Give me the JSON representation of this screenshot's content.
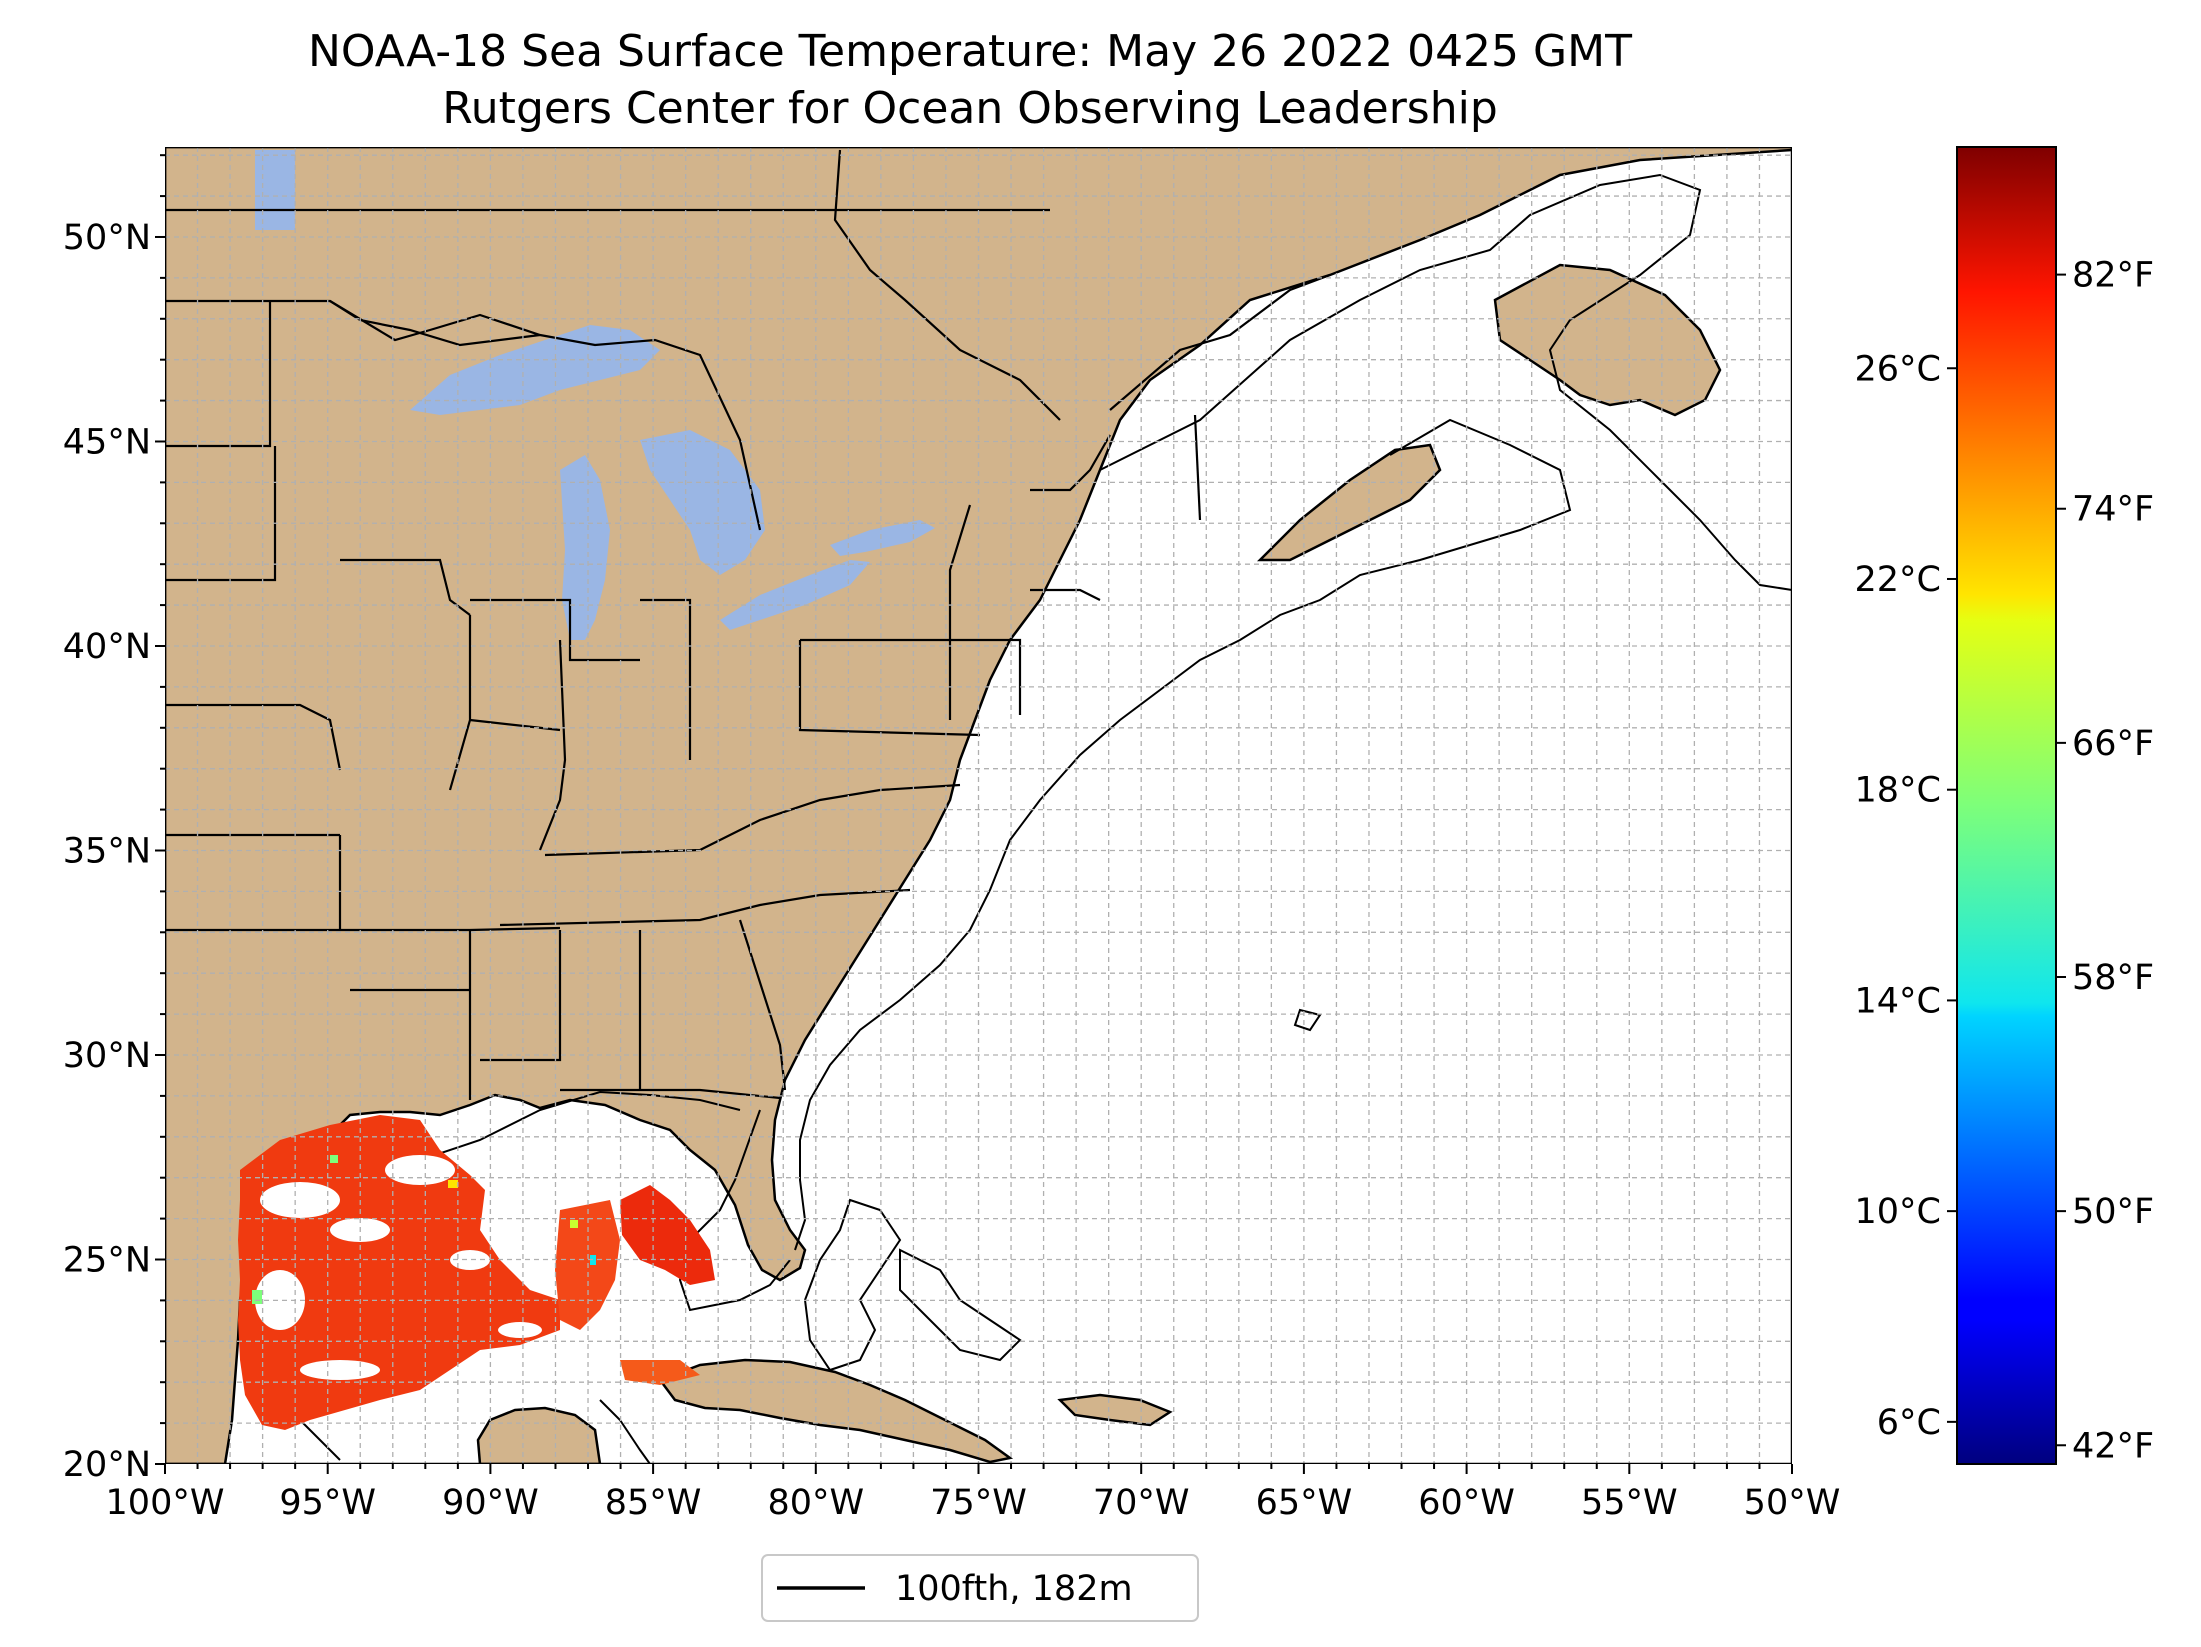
{
  "title": {
    "line1": "NOAA-18 Sea Surface Temperature: May 26 2022 0425 GMT",
    "line2": "Rutgers Center for Ocean Observing Leadership"
  },
  "map": {
    "lon_range": [
      -100,
      -50
    ],
    "lat_range": [
      20,
      52.2
    ],
    "lon_ticks": [
      {
        "value": -100,
        "label": "100°W"
      },
      {
        "value": -95,
        "label": "95°W"
      },
      {
        "value": -90,
        "label": "90°W"
      },
      {
        "value": -85,
        "label": "85°W"
      },
      {
        "value": -80,
        "label": "80°W"
      },
      {
        "value": -75,
        "label": "75°W"
      },
      {
        "value": -70,
        "label": "70°W"
      },
      {
        "value": -65,
        "label": "65°W"
      },
      {
        "value": -60,
        "label": "60°W"
      },
      {
        "value": -55,
        "label": "55°W"
      },
      {
        "value": -50,
        "label": "50°W"
      }
    ],
    "lat_ticks": [
      {
        "value": 20,
        "label": "20°N"
      },
      {
        "value": 25,
        "label": "25°N"
      },
      {
        "value": 30,
        "label": "30°N"
      },
      {
        "value": 35,
        "label": "35°N"
      },
      {
        "value": 40,
        "label": "40°N"
      },
      {
        "value": 45,
        "label": "45°N"
      },
      {
        "value": 50,
        "label": "50°N"
      }
    ],
    "gridlines": "dashed, 1° spacing",
    "colors": {
      "land": "#d2b48c",
      "lakes": "#9ab6e4",
      "ocean_no_data": "#ffffff",
      "sst_warm": "#f03a10"
    }
  },
  "colorbar": {
    "colormap": "jet",
    "celsius_ticks": [
      {
        "value": 6,
        "label": "6°C"
      },
      {
        "value": 10,
        "label": "10°C"
      },
      {
        "value": 14,
        "label": "14°C"
      },
      {
        "value": 18,
        "label": "18°C"
      },
      {
        "value": 22,
        "label": "22°C"
      },
      {
        "value": 26,
        "label": "26°C"
      }
    ],
    "fahrenheit_ticks": [
      {
        "value": 42,
        "label": "42°F"
      },
      {
        "value": 50,
        "label": "50°F"
      },
      {
        "value": 58,
        "label": "58°F"
      },
      {
        "value": 66,
        "label": "66°F"
      },
      {
        "value": 74,
        "label": "74°F"
      },
      {
        "value": 82,
        "label": "82°F"
      }
    ],
    "range_c": [
      5.2,
      30.2
    ]
  },
  "legend": {
    "label": "100fth, 182m",
    "line_color": "#000000"
  }
}
